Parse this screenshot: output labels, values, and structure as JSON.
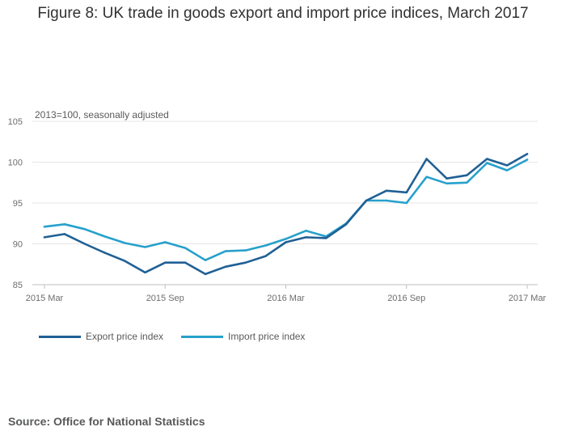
{
  "figure": {
    "title": "Figure 8: UK trade in goods export and import price indices, March 2017",
    "note": "2013=100, seasonally adjusted",
    "source": "Source: Office for National Statistics"
  },
  "colors": {
    "export": "#206095",
    "import": "#27a0cc",
    "grid": "#e6e6e6",
    "axis": "#bfbfbf"
  },
  "chart_data": {
    "type": "line",
    "x": [
      "2015 Mar",
      "2015 Apr",
      "2015 May",
      "2015 Jun",
      "2015 Jul",
      "2015 Aug",
      "2015 Sep",
      "2015 Oct",
      "2015 Nov",
      "2015 Dec",
      "2016 Jan",
      "2016 Feb",
      "2016 Mar",
      "2016 Apr",
      "2016 May",
      "2016 Jun",
      "2016 Jul",
      "2016 Aug",
      "2016 Sep",
      "2016 Oct",
      "2016 Nov",
      "2016 Dec",
      "2017 Jan",
      "2017 Feb",
      "2017 Mar"
    ],
    "xticks": [
      "2015 Mar",
      "2015 Sep",
      "2016 Mar",
      "2016 Sep",
      "2017 Mar"
    ],
    "xtick_index": [
      0,
      6,
      12,
      18,
      24
    ],
    "ylim": [
      85,
      105
    ],
    "yticks": [
      85,
      90,
      95,
      100,
      105
    ],
    "grid": true,
    "legend_position": "bottom-left",
    "series": [
      {
        "name": "Export price index",
        "key": "export",
        "values": [
          90.8,
          91.2,
          90.0,
          88.9,
          87.9,
          86.5,
          87.7,
          87.7,
          86.3,
          87.2,
          87.7,
          88.5,
          90.2,
          90.8,
          90.7,
          92.4,
          95.3,
          96.5,
          96.3,
          100.4,
          98.0,
          98.4,
          100.4,
          99.6,
          101.0
        ]
      },
      {
        "name": "Import price index",
        "key": "import",
        "values": [
          92.1,
          92.4,
          91.8,
          90.9,
          90.1,
          89.6,
          90.2,
          89.5,
          88.0,
          89.1,
          89.2,
          89.8,
          90.6,
          91.6,
          90.9,
          92.5,
          95.3,
          95.3,
          95.0,
          98.2,
          97.4,
          97.5,
          99.9,
          99.0,
          100.3
        ]
      }
    ]
  }
}
